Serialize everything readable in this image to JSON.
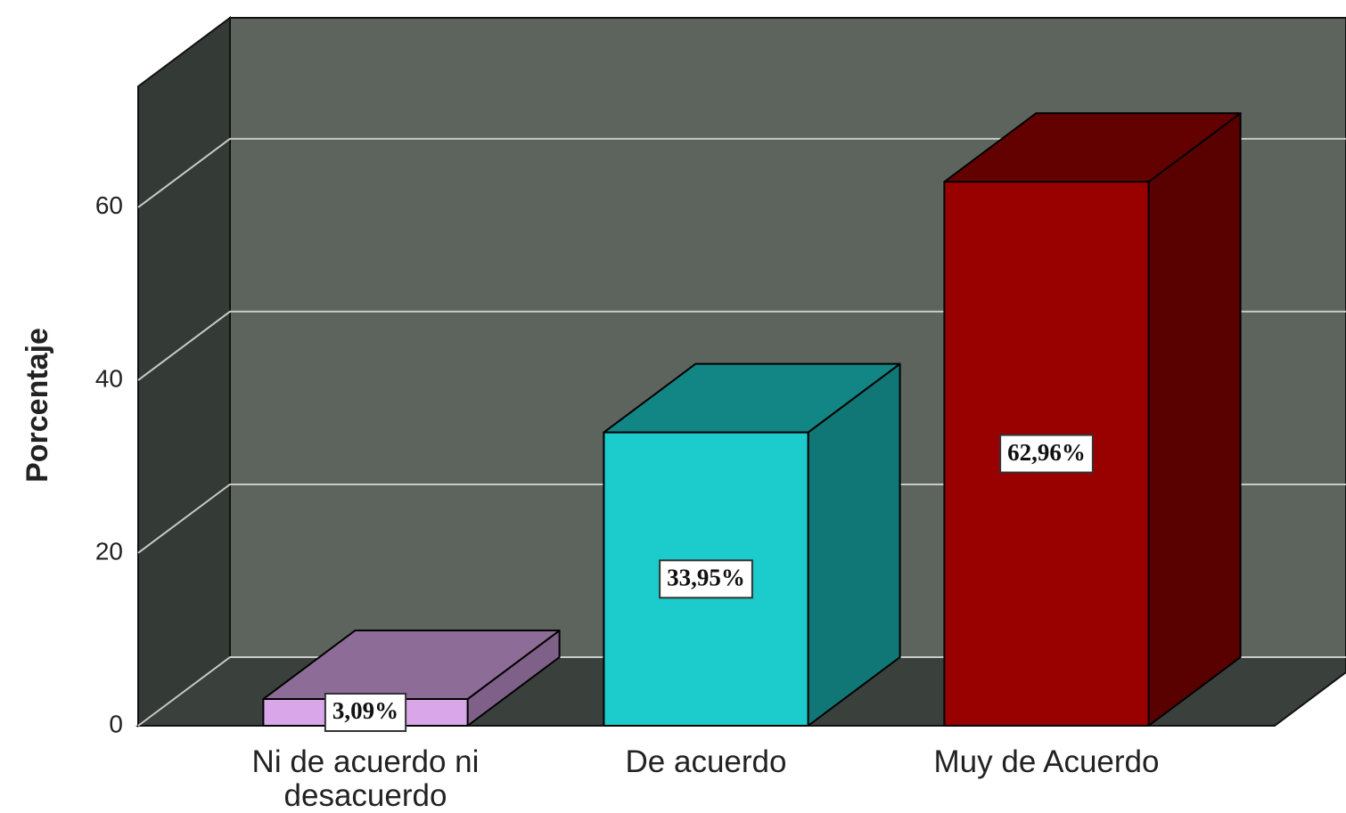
{
  "chart_data": {
    "type": "bar3d",
    "ylabel": "Porcentaje",
    "categories": [
      "Ni de acuerdo ni desacuerdo",
      "De acuerdo",
      "Muy de Acuerdo"
    ],
    "values": [
      3.09,
      33.95,
      62.96
    ],
    "value_labels": [
      "3,09%",
      "33,95%",
      "62,96%"
    ],
    "colors": [
      "#d9a6ea",
      "#1ccccc",
      "#990000"
    ],
    "ylim": [
      0,
      74
    ],
    "yticks": [
      0,
      20,
      40,
      60
    ],
    "grid": true
  }
}
